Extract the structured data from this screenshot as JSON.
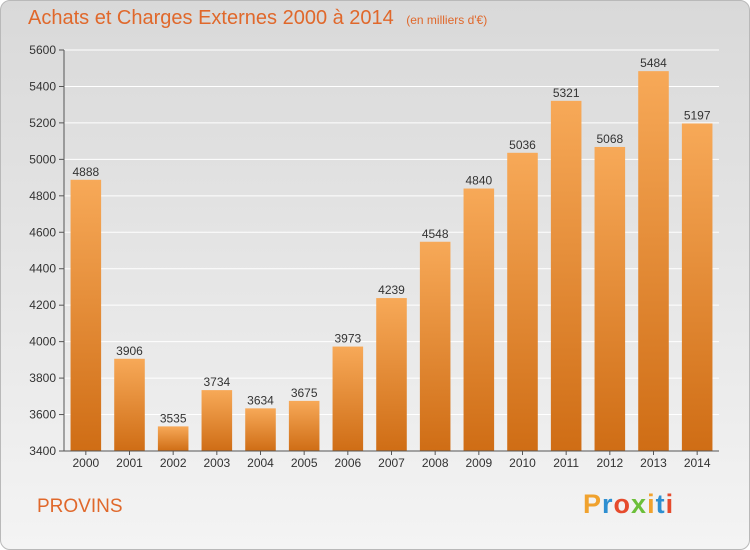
{
  "header": {
    "title": "Achats et Charges Externes 2000 à 2014",
    "unit": "(en milliers d'€)"
  },
  "footer": {
    "commune": "PROVINS",
    "brand": "Proxiti"
  },
  "colors": {
    "accent": "#e0682b",
    "bar_top": "#f7a958",
    "bar_bottom": "#cf6d15",
    "logo_letters": [
      "#f0a22e",
      "#2e8fd1",
      "#e64b2d",
      "#6cbf3a",
      "#f0a22e",
      "#2e8fd1",
      "#e64b2d"
    ]
  },
  "chart_data": {
    "type": "bar",
    "title": "Achats et Charges Externes 2000 à 2014",
    "subtitle": "(en milliers d'€)",
    "categories": [
      "2000",
      "2001",
      "2002",
      "2003",
      "2004",
      "2005",
      "2006",
      "2007",
      "2008",
      "2009",
      "2010",
      "2011",
      "2012",
      "2013",
      "2014"
    ],
    "values": [
      4888,
      3906,
      3535,
      3734,
      3634,
      3675,
      3973,
      4239,
      4548,
      4840,
      5036,
      5321,
      5068,
      5484,
      5197
    ],
    "ylim": [
      3400,
      5600
    ],
    "yticks": [
      3400,
      3600,
      3800,
      4000,
      4200,
      4400,
      4600,
      4800,
      5000,
      5200,
      5400,
      5600
    ],
    "grid": true,
    "legend": "none"
  }
}
